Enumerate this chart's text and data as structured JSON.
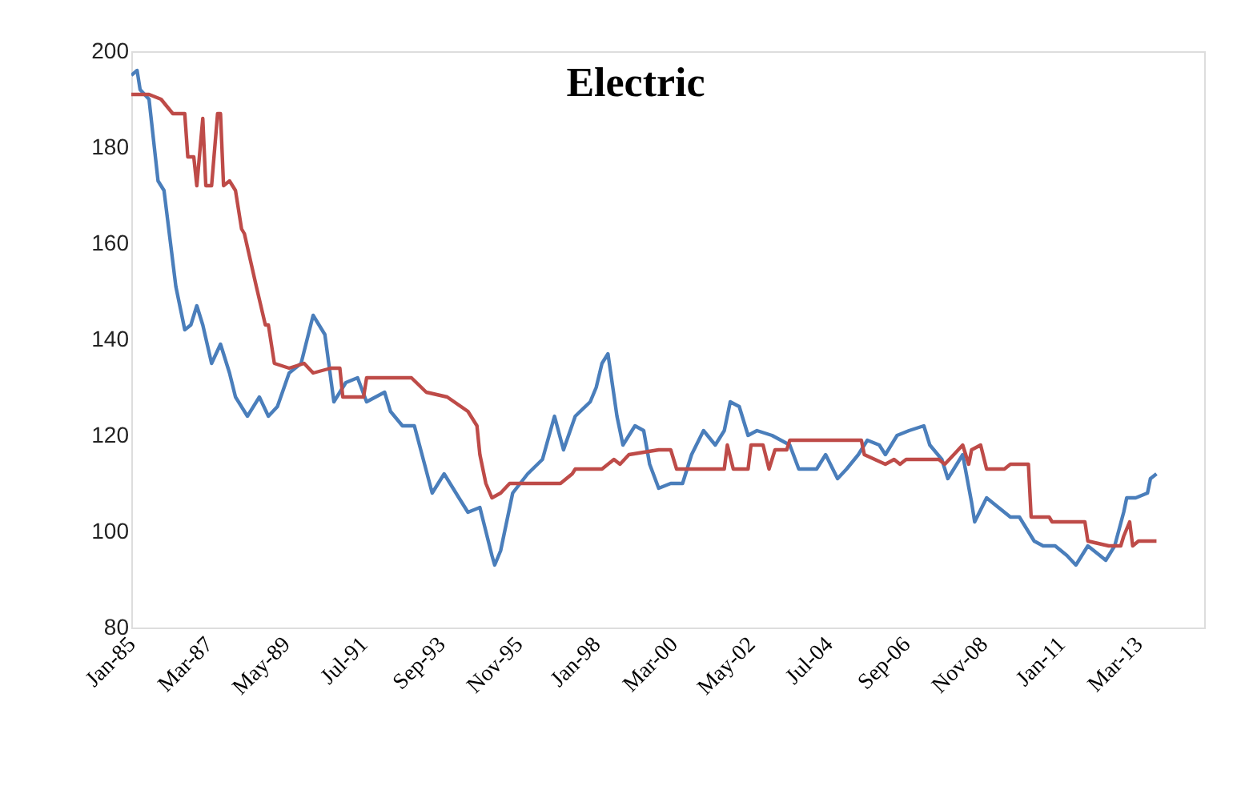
{
  "chart_data": {
    "type": "line",
    "title": "Electric",
    "xlim": [
      "1985-01",
      "2015-01"
    ],
    "xticks": [
      {
        "value": "1985-01",
        "label": "Jan-85"
      },
      {
        "value": "1987-03",
        "label": "Mar-87"
      },
      {
        "value": "1989-05",
        "label": "May-89"
      },
      {
        "value": "1991-07",
        "label": "Jul-91"
      },
      {
        "value": "1993-09",
        "label": "Sep-93"
      },
      {
        "value": "1995-11",
        "label": "Nov-95"
      },
      {
        "value": "1998-01",
        "label": "Jan-98"
      },
      {
        "value": "2000-03",
        "label": "Mar-00"
      },
      {
        "value": "2002-05",
        "label": "May-02"
      },
      {
        "value": "2004-07",
        "label": "Jul-04"
      },
      {
        "value": "2006-09",
        "label": "Sep-06"
      },
      {
        "value": "2008-11",
        "label": "Nov-08"
      },
      {
        "value": "2011-01",
        "label": "Jan-11"
      },
      {
        "value": "2013-03",
        "label": "Mar-13"
      }
    ],
    "ylim": [
      80,
      200
    ],
    "yticks": [
      80,
      100,
      120,
      140,
      160,
      180,
      200
    ],
    "line_style": "solid",
    "series": [
      {
        "color": "#4a7ebb",
        "x": [
          "1985-01",
          "1985-03",
          "1985-04",
          "1985-07",
          "1985-10",
          "1985-12",
          "1986-04",
          "1986-07",
          "1986-09",
          "1986-11",
          "1987-01",
          "1987-04",
          "1987-07",
          "1987-10",
          "1987-12",
          "1988-04",
          "1988-08",
          "1988-11",
          "1989-02",
          "1989-06",
          "1989-10",
          "1990-02",
          "1990-06",
          "1990-09",
          "1991-01",
          "1991-05",
          "1991-08",
          "1992-02",
          "1992-04",
          "1992-08",
          "1992-12",
          "1993-06",
          "1993-10",
          "1994-03",
          "1994-06",
          "1994-10",
          "1995-02",
          "1995-03",
          "1995-05",
          "1995-09",
          "1996-02",
          "1996-07",
          "1996-11",
          "1997-02",
          "1997-06",
          "1997-11",
          "1998-01",
          "1998-03",
          "1998-05",
          "1998-08",
          "1998-10",
          "1999-02",
          "1999-05",
          "1999-07",
          "1999-10",
          "2000-02",
          "2000-06",
          "2000-09",
          "2001-01",
          "2001-05",
          "2001-08",
          "2001-10",
          "2002-01",
          "2002-04",
          "2002-07",
          "2002-12",
          "2003-06",
          "2003-09",
          "2004-03",
          "2004-06",
          "2004-10",
          "2005-01",
          "2005-05",
          "2005-08",
          "2005-12",
          "2006-02",
          "2006-06",
          "2006-10",
          "2007-03",
          "2007-05",
          "2007-09",
          "2007-11",
          "2008-01",
          "2008-04",
          "2008-07",
          "2008-08",
          "2008-12",
          "2009-04",
          "2009-08",
          "2009-11",
          "2010-04",
          "2010-07",
          "2010-11",
          "2011-03",
          "2011-06",
          "2011-10",
          "2012-02",
          "2012-04",
          "2012-07",
          "2012-10",
          "2012-11",
          "2013-02",
          "2013-06",
          "2013-07",
          "2013-09"
        ],
        "values": [
          195,
          196,
          192,
          190,
          173,
          171,
          151,
          142,
          143,
          147,
          143,
          135,
          139,
          133,
          128,
          124,
          128,
          124,
          126,
          133,
          135,
          145,
          141,
          127,
          131,
          132,
          127,
          129,
          125,
          122,
          122,
          108,
          112,
          107,
          104,
          105,
          95,
          93,
          96,
          108,
          112,
          115,
          124,
          117,
          124,
          127,
          130,
          135,
          137,
          124,
          118,
          122,
          121,
          114,
          109,
          110,
          110,
          116,
          121,
          118,
          121,
          127,
          126,
          120,
          121,
          120,
          118,
          113,
          113,
          116,
          111,
          113,
          116,
          119,
          118,
          116,
          120,
          121,
          122,
          118,
          115,
          111,
          113,
          116,
          106,
          102,
          107,
          105,
          103,
          103,
          98,
          97,
          97,
          95,
          93,
          97,
          95,
          94,
          97,
          104,
          107,
          107,
          108,
          111,
          112
        ]
      },
      {
        "color": "#be4b48",
        "x": [
          "1985-01",
          "1985-07",
          "1985-11",
          "1986-03",
          "1986-07",
          "1986-08",
          "1986-10",
          "1986-11",
          "1987-01",
          "1987-02",
          "1987-04",
          "1987-06",
          "1987-07",
          "1987-08",
          "1987-10",
          "1987-12",
          "1988-02",
          "1988-03",
          "1988-07",
          "1988-10",
          "1988-11",
          "1989-01",
          "1989-06",
          "1989-11",
          "1990-02",
          "1990-08",
          "1990-11",
          "1990-12",
          "1991-07",
          "1991-08",
          "1992-11",
          "1993-04",
          "1993-11",
          "1994-06",
          "1994-09",
          "1994-10",
          "1994-12",
          "1995-02",
          "1995-05",
          "1995-08",
          "1997-01",
          "1997-05",
          "1997-06",
          "1998-03",
          "1998-07",
          "1998-09",
          "1998-12",
          "1999-10",
          "2000-02",
          "2000-04",
          "2001-08",
          "2001-09",
          "2001-11",
          "2002-04",
          "2002-05",
          "2002-09",
          "2002-11",
          "2003-01",
          "2003-05",
          "2003-06",
          "2005-06",
          "2005-07",
          "2006-02",
          "2006-05",
          "2006-07",
          "2006-09",
          "2007-08",
          "2007-10",
          "2008-01",
          "2008-04",
          "2008-06",
          "2008-07",
          "2008-10",
          "2008-12",
          "2009-06",
          "2009-08",
          "2010-02",
          "2010-03",
          "2010-09",
          "2010-10",
          "2011-09",
          "2011-10",
          "2012-05",
          "2012-09",
          "2012-10",
          "2012-12",
          "2013-01",
          "2013-03",
          "2013-09"
        ],
        "values": [
          191,
          191,
          190,
          187,
          187,
          178,
          178,
          172,
          186,
          172,
          172,
          187,
          187,
          172,
          173,
          171,
          163,
          162,
          151,
          143,
          143,
          135,
          134,
          135,
          133,
          134,
          134,
          128,
          128,
          132,
          132,
          129,
          128,
          125,
          122,
          116,
          110,
          107,
          108,
          110,
          110,
          112,
          113,
          113,
          115,
          114,
          116,
          117,
          117,
          113,
          113,
          118,
          113,
          113,
          118,
          118,
          113,
          117,
          117,
          119,
          119,
          116,
          114,
          115,
          114,
          115,
          115,
          114,
          116,
          118,
          114,
          117,
          118,
          113,
          113,
          114,
          114,
          103,
          103,
          102,
          102,
          98,
          97,
          97,
          99,
          102,
          97,
          98,
          98
        ]
      }
    ]
  }
}
